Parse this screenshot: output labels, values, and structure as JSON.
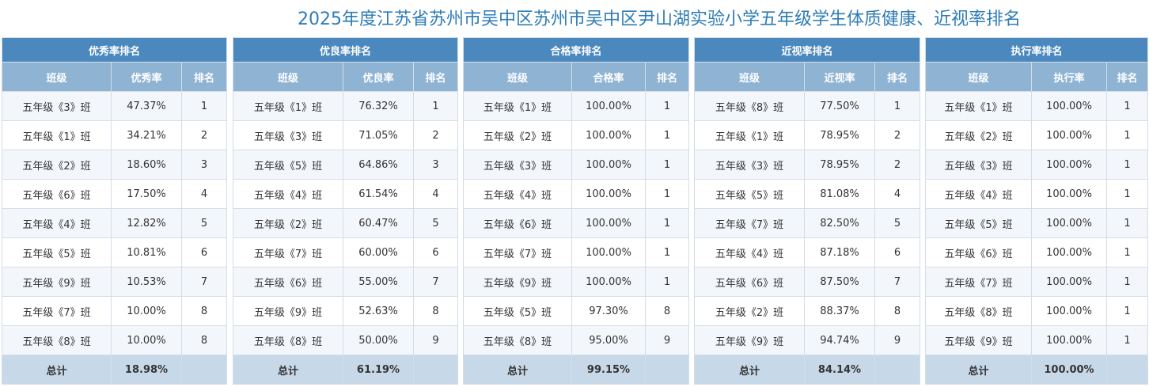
{
  "title": "2025年度江苏省苏州市吴中区苏州市吴中区尹山湖实验小学五年级学生体质健康、近视率排名",
  "panels": [
    {
      "header": "优秀率排名",
      "columns": [
        "班级",
        "优秀率",
        "排名"
      ],
      "rows": [
        [
          "五年级《3》班",
          "47.37%",
          "1"
        ],
        [
          "五年级《1》班",
          "34.21%",
          "2"
        ],
        [
          "五年级《2》班",
          "18.60%",
          "3"
        ],
        [
          "五年级《6》班",
          "17.50%",
          "4"
        ],
        [
          "五年级《4》班",
          "12.82%",
          "5"
        ],
        [
          "五年级《5》班",
          "10.81%",
          "6"
        ],
        [
          "五年级《9》班",
          "10.53%",
          "7"
        ],
        [
          "五年级《7》班",
          "10.00%",
          "8"
        ],
        [
          "五年级《8》班",
          "10.00%",
          "8"
        ]
      ],
      "total_label": "总计",
      "total_value": "18.98%"
    },
    {
      "header": "优良率排名",
      "columns": [
        "班级",
        "优良率",
        "排名"
      ],
      "rows": [
        [
          "五年级《1》班",
          "76.32%",
          "1"
        ],
        [
          "五年级《3》班",
          "71.05%",
          "2"
        ],
        [
          "五年级《5》班",
          "64.86%",
          "3"
        ],
        [
          "五年级《4》班",
          "61.54%",
          "4"
        ],
        [
          "五年级《2》班",
          "60.47%",
          "5"
        ],
        [
          "五年级《7》班",
          "60.00%",
          "6"
        ],
        [
          "五年级《6》班",
          "55.00%",
          "7"
        ],
        [
          "五年级《9》班",
          "52.63%",
          "8"
        ],
        [
          "五年级《8》班",
          "50.00%",
          "9"
        ]
      ],
      "total_label": "总计",
      "total_value": "61.19%"
    },
    {
      "header": "合格率排名",
      "columns": [
        "班级",
        "合格率",
        "排名"
      ],
      "rows": [
        [
          "五年级《1》班",
          "100.00%",
          "1"
        ],
        [
          "五年级《2》班",
          "100.00%",
          "1"
        ],
        [
          "五年级《3》班",
          "100.00%",
          "1"
        ],
        [
          "五年级《4》班",
          "100.00%",
          "1"
        ],
        [
          "五年级《6》班",
          "100.00%",
          "1"
        ],
        [
          "五年级《7》班",
          "100.00%",
          "1"
        ],
        [
          "五年级《9》班",
          "100.00%",
          "1"
        ],
        [
          "五年级《5》班",
          "97.30%",
          "8"
        ],
        [
          "五年级《8》班",
          "95.00%",
          "9"
        ]
      ],
      "total_label": "总计",
      "total_value": "99.15%"
    },
    {
      "header": "近视率排名",
      "columns": [
        "班级",
        "近视率",
        "排名"
      ],
      "rows": [
        [
          "五年级《8》班",
          "77.50%",
          "1"
        ],
        [
          "五年级《1》班",
          "78.95%",
          "2"
        ],
        [
          "五年级《3》班",
          "78.95%",
          "2"
        ],
        [
          "五年级《5》班",
          "81.08%",
          "4"
        ],
        [
          "五年级《7》班",
          "82.50%",
          "5"
        ],
        [
          "五年级《4》班",
          "87.18%",
          "6"
        ],
        [
          "五年级《6》班",
          "87.50%",
          "7"
        ],
        [
          "五年级《2》班",
          "88.37%",
          "8"
        ],
        [
          "五年级《9》班",
          "94.74%",
          "9"
        ]
      ],
      "total_label": "总计",
      "total_value": "84.14%"
    },
    {
      "header": "执行率排名",
      "columns": [
        "班级",
        "执行率",
        "排名"
      ],
      "rows": [
        [
          "五年级《1》班",
          "100.00%",
          "1"
        ],
        [
          "五年级《2》班",
          "100.00%",
          "1"
        ],
        [
          "五年级《3》班",
          "100.00%",
          "1"
        ],
        [
          "五年级《4》班",
          "100.00%",
          "1"
        ],
        [
          "五年级《5》班",
          "100.00%",
          "1"
        ],
        [
          "五年级《6》班",
          "100.00%",
          "1"
        ],
        [
          "五年级《7》班",
          "100.00%",
          "1"
        ],
        [
          "五年级《8》班",
          "100.00%",
          "1"
        ],
        [
          "五年级《9》班",
          "100.00%",
          "1"
        ]
      ],
      "total_label": "总计",
      "total_value": "100.00%"
    }
  ]
}
